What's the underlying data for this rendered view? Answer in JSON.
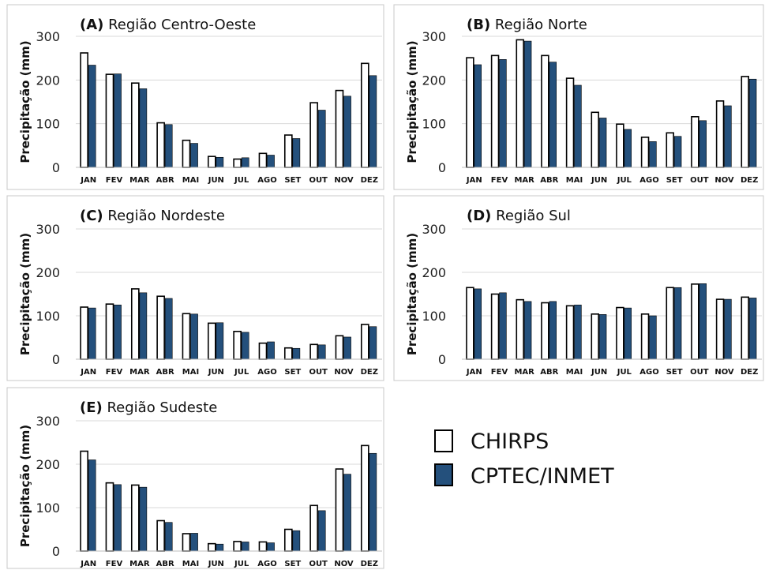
{
  "chart_data": [
    {
      "type": "bar",
      "letter": "(A)",
      "region": "Região Centro-Oeste",
      "ylabel": "Precipitação (mm)",
      "ylim": [
        0,
        300
      ],
      "yticks": [
        "0",
        "100",
        "200",
        "300"
      ],
      "categories": [
        "JAN",
        "FEV",
        "MAR",
        "ABR",
        "MAI",
        "JUN",
        "JUL",
        "AGO",
        "SET",
        "OUT",
        "NOV",
        "DEZ"
      ],
      "series": [
        {
          "name": "CHIRPS",
          "values": [
            262,
            213,
            193,
            102,
            62,
            25,
            19,
            32,
            74,
            148,
            176,
            238
          ]
        },
        {
          "name": "CPTEC/INMET",
          "values": [
            234,
            214,
            180,
            98,
            55,
            23,
            22,
            28,
            66,
            131,
            163,
            210
          ]
        }
      ]
    },
    {
      "type": "bar",
      "letter": "(B)",
      "region": "Região Norte",
      "ylabel": "Precipitação (mm)",
      "ylim": [
        0,
        300
      ],
      "yticks": [
        "0",
        "100",
        "200",
        "300"
      ],
      "categories": [
        "JAN",
        "FEV",
        "MAR",
        "ABR",
        "MAI",
        "JUN",
        "JUL",
        "AGO",
        "SET",
        "OUT",
        "NOV",
        "DEZ"
      ],
      "series": [
        {
          "name": "CHIRPS",
          "values": [
            251,
            256,
            292,
            256,
            204,
            126,
            99,
            69,
            79,
            116,
            152,
            208
          ]
        },
        {
          "name": "CPTEC/INMET",
          "values": [
            235,
            247,
            289,
            241,
            188,
            113,
            87,
            59,
            71,
            107,
            141,
            202
          ]
        }
      ]
    },
    {
      "type": "bar",
      "letter": "(C)",
      "region": "Região Nordeste",
      "ylabel": "Precipitação (mm)",
      "ylim": [
        0,
        300
      ],
      "yticks": [
        "0",
        "100",
        "200",
        "300"
      ],
      "categories": [
        "JAN",
        "FEV",
        "MAR",
        "ABR",
        "MAI",
        "JUN",
        "JUL",
        "AGO",
        "SET",
        "OUT",
        "NOV",
        "DEZ"
      ],
      "series": [
        {
          "name": "CHIRPS",
          "values": [
            120,
            127,
            162,
            145,
            105,
            83,
            64,
            37,
            26,
            34,
            54,
            80
          ]
        },
        {
          "name": "CPTEC/INMET",
          "values": [
            118,
            125,
            153,
            140,
            104,
            84,
            62,
            40,
            25,
            33,
            51,
            75
          ]
        }
      ]
    },
    {
      "type": "bar",
      "letter": "(D)",
      "region": "Região Sul",
      "ylabel": "Precipitação (mm)",
      "ylim": [
        0,
        300
      ],
      "yticks": [
        "0",
        "100",
        "200",
        "300"
      ],
      "categories": [
        "JAN",
        "FEV",
        "MAR",
        "ABR",
        "MAI",
        "JUN",
        "JUL",
        "AGO",
        "SET",
        "OUT",
        "NOV",
        "DEZ"
      ],
      "series": [
        {
          "name": "CHIRPS",
          "values": [
            165,
            150,
            137,
            130,
            123,
            104,
            119,
            104,
            165,
            173,
            138,
            143
          ]
        },
        {
          "name": "CPTEC/INMET",
          "values": [
            162,
            153,
            133,
            133,
            125,
            103,
            118,
            100,
            165,
            174,
            138,
            141
          ]
        }
      ]
    },
    {
      "type": "bar",
      "letter": "(E)",
      "region": "Região Sudeste",
      "ylabel": "Precipitação (mm)",
      "ylim": [
        0,
        300
      ],
      "yticks": [
        "0",
        "100",
        "200",
        "300"
      ],
      "categories": [
        "JAN",
        "FEV",
        "MAR",
        "ABR",
        "MAI",
        "JUN",
        "JUL",
        "AGO",
        "SET",
        "OUT",
        "NOV",
        "DEZ"
      ],
      "series": [
        {
          "name": "CHIRPS",
          "values": [
            230,
            157,
            152,
            70,
            40,
            17,
            22,
            21,
            50,
            105,
            189,
            243
          ]
        },
        {
          "name": "CPTEC/INMET",
          "values": [
            210,
            153,
            147,
            66,
            41,
            16,
            21,
            19,
            47,
            93,
            177,
            225
          ]
        }
      ]
    }
  ],
  "legend": {
    "placement": "bottom-right",
    "items": [
      {
        "label": "CHIRPS",
        "color": "#ffffff"
      },
      {
        "label": "CPTEC/INMET",
        "color": "#24507c"
      }
    ]
  },
  "colors": {
    "chirps_fill": "#ffffff",
    "cptec_fill": "#24507c",
    "bar_outline": "#000000",
    "grid": "#d9d9d9",
    "panel_border": "#c8c8c8"
  }
}
